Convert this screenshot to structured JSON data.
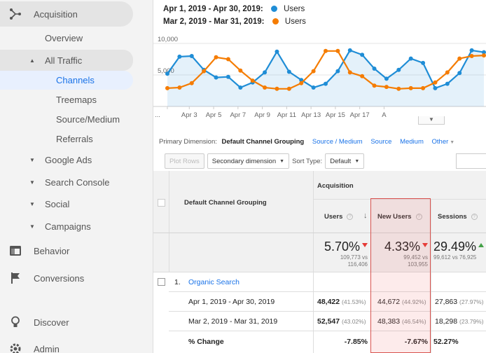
{
  "sidebar": {
    "acquisition": "Acquisition",
    "overview": "Overview",
    "all_traffic": "All Traffic",
    "channels": "Channels",
    "treemaps": "Treemaps",
    "source_medium": "Source/Medium",
    "referrals": "Referrals",
    "google_ads": "Google Ads",
    "search_console": "Search Console",
    "social": "Social",
    "campaigns": "Campaigns",
    "behavior": "Behavior",
    "conversions": "Conversions",
    "discover": "Discover",
    "admin": "Admin"
  },
  "legend": {
    "range1": "Apr 1, 2019 - Apr 30, 2019:",
    "range2": "Mar 2, 2019 - Mar 31, 2019:",
    "metric": "Users",
    "color1": "#1f8dd6",
    "color2": "#f57c00"
  },
  "chart_data": {
    "type": "line",
    "y_tick_labels": [
      "10,000",
      "5,000"
    ],
    "ylim": [
      0,
      12000
    ],
    "x_tick_labels": [
      "...",
      "Apr 3",
      "Apr 5",
      "Apr 7",
      "Apr 9",
      "Apr 11",
      "Apr 13",
      "Apr 15",
      "Apr 17",
      "A"
    ],
    "series": [
      {
        "name": "Users",
        "color": "#1f8dd6",
        "fill": true,
        "values": [
          5200,
          7900,
          8000,
          5800,
          4600,
          4700,
          3000,
          3800,
          5400,
          8700,
          5500,
          4200,
          3000,
          3600,
          5600,
          8900,
          8200,
          6000,
          4400,
          5800,
          7600,
          6900,
          2900,
          3600,
          5300,
          8900,
          8600
        ]
      },
      {
        "name": "Users",
        "color": "#f57c00",
        "fill": false,
        "values": [
          2900,
          3000,
          3700,
          5600,
          7800,
          7500,
          5700,
          4100,
          3000,
          2800,
          2800,
          3700,
          5600,
          8800,
          8800,
          5400,
          4800,
          3300,
          3100,
          2800,
          2900,
          2900,
          3800,
          5400,
          7600,
          8000,
          8100
        ]
      }
    ]
  },
  "dimensions": {
    "primary_label": "Primary Dimension:",
    "active": "Default Channel Grouping",
    "links": [
      "Source / Medium",
      "Source",
      "Medium",
      "Other"
    ]
  },
  "controls": {
    "plot_rows": "Plot Rows",
    "secondary": "Secondary dimension",
    "sort_type_label": "Sort Type:",
    "sort_default": "Default"
  },
  "table": {
    "col_dimension": "Default Channel Grouping",
    "group_acquisition": "Acquisition",
    "col_users": "Users",
    "col_new_users": "New Users",
    "col_sessions": "Sessions",
    "summary": {
      "users_pct": "5.70%",
      "users_sub1": "109,773 vs",
      "users_sub2": "116,406",
      "new_users_pct": "4.33%",
      "new_users_sub1": "99,452 vs",
      "new_users_sub2": "103,955",
      "sessions_pct": "29.49%",
      "sessions_sub1": "99,612 vs 76,925"
    },
    "row_num": "1.",
    "row_name": "Organic Search",
    "sub_rows": [
      {
        "label": "Apr 1, 2019 - Apr 30, 2019",
        "users": "48,422",
        "users_pct": "(41.53%)",
        "new_users": "44,672",
        "new_users_pct": "(44.92%)",
        "sessions": "27,863",
        "sessions_pct": "(27.97%)"
      },
      {
        "label": "Mar 2, 2019 - Mar 31, 2019",
        "users": "52,547",
        "users_pct": "(43.02%)",
        "new_users": "48,383",
        "new_users_pct": "(46.54%)",
        "sessions": "18,298",
        "sessions_pct": "(23.79%)"
      }
    ],
    "change_label": "% Change",
    "change_users": "-7.85%",
    "change_new_users": "-7.67%",
    "change_sessions": "52.27%"
  }
}
